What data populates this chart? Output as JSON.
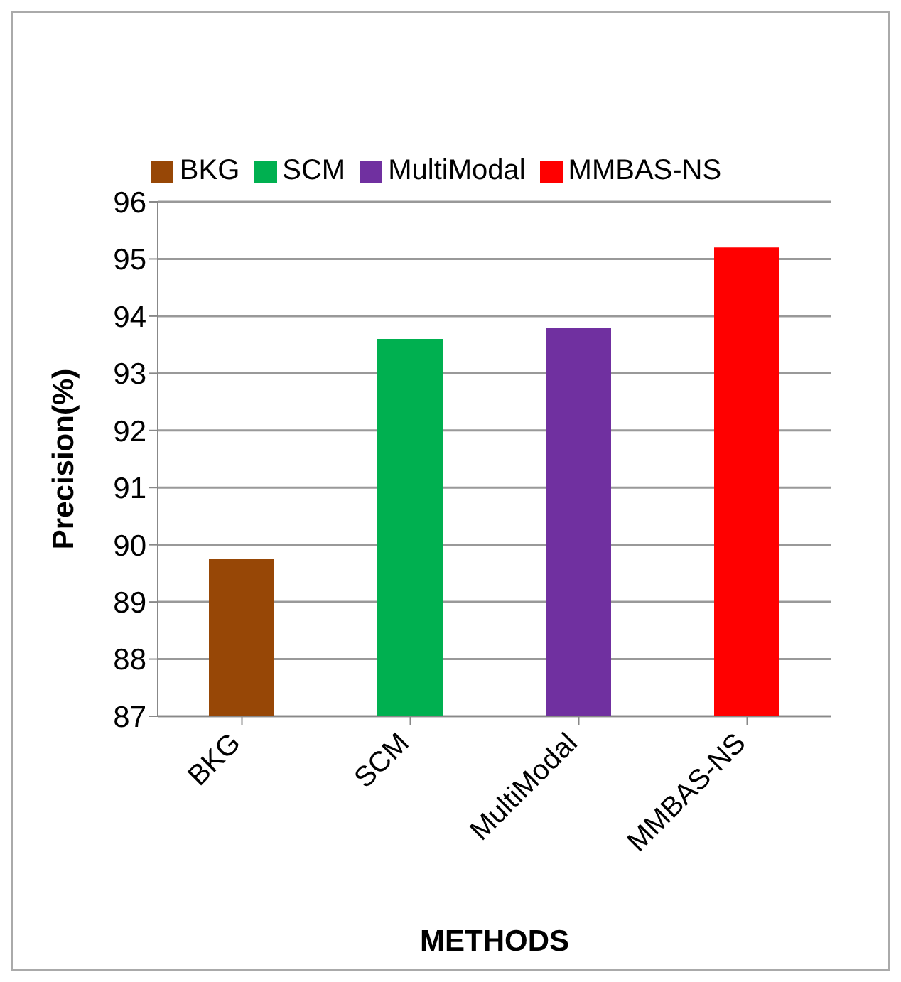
{
  "chart_data": {
    "type": "bar",
    "xlabel": "METHODS",
    "ylabel": "Precision(%)",
    "categories": [
      "BKG",
      "SCM",
      "MultiModal",
      "MMBAS-NS"
    ],
    "series": [
      {
        "name": "BKG",
        "color": "#974706",
        "values": [
          89.75,
          null,
          null,
          null
        ]
      },
      {
        "name": "SCM",
        "color": "#00b050",
        "values": [
          null,
          93.6,
          null,
          null
        ]
      },
      {
        "name": "MultiModal",
        "color": "#7030a0",
        "values": [
          null,
          null,
          93.8,
          null
        ]
      },
      {
        "name": "MMBAS-NS",
        "color": "#ff0000",
        "values": [
          null,
          null,
          null,
          95.2
        ]
      }
    ],
    "stacked": true,
    "ylim": [
      87,
      96
    ],
    "yticks": [
      87,
      88,
      89,
      90,
      91,
      92,
      93,
      94,
      95,
      96
    ],
    "grid": "y",
    "legend": "top"
  }
}
